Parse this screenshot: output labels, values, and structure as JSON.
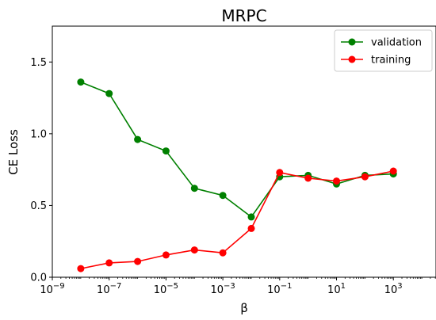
{
  "chart_data": {
    "type": "line",
    "title": "MRPC",
    "xlabel": "β",
    "ylabel": "CE Loss",
    "xscale": "log",
    "xlim_exponent": [
      -9,
      4.5
    ],
    "ylim": [
      0,
      1.75
    ],
    "grid": false,
    "legend_position": "top-right",
    "x_ticks": [
      {
        "exp": -9,
        "base": "10",
        "sup": "−9"
      },
      {
        "exp": -7,
        "base": "10",
        "sup": "−7"
      },
      {
        "exp": -5,
        "base": "10",
        "sup": "−5"
      },
      {
        "exp": -3,
        "base": "10",
        "sup": "−3"
      },
      {
        "exp": -1,
        "base": "10",
        "sup": "−1"
      },
      {
        "exp": 1,
        "base": "10",
        "sup": "1"
      },
      {
        "exp": 3,
        "base": "10",
        "sup": "3"
      }
    ],
    "y_ticks": [
      {
        "value": 0.0,
        "label": "0.0"
      },
      {
        "value": 0.5,
        "label": "0.5"
      },
      {
        "value": 1.0,
        "label": "1.0"
      },
      {
        "value": 1.5,
        "label": "1.5"
      }
    ],
    "x_exponents": [
      -8,
      -7,
      -6,
      -5,
      -4,
      -3,
      -2,
      -1,
      0,
      1,
      2,
      3
    ],
    "series": [
      {
        "name": "validation",
        "color": "#008000",
        "values": [
          1.36,
          1.28,
          0.96,
          0.88,
          0.62,
          0.57,
          0.42,
          0.7,
          0.71,
          0.65,
          0.71,
          0.72
        ]
      },
      {
        "name": "training",
        "color": "#ff0000",
        "values": [
          0.06,
          0.1,
          0.11,
          0.155,
          0.19,
          0.17,
          0.34,
          0.73,
          0.69,
          0.67,
          0.7,
          0.74
        ]
      }
    ]
  }
}
